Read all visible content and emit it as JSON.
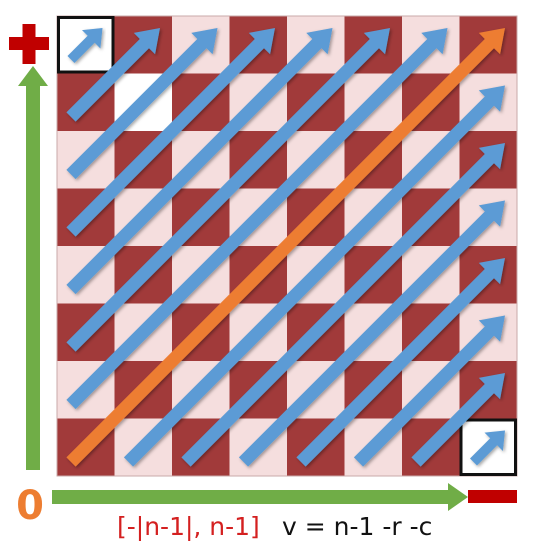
{
  "board": {
    "size": 8,
    "dark_color": "#a13a3a",
    "light_color": "#f5dede",
    "highlight_cell_color": "#ffffff",
    "highlighted_cells": [
      [
        0,
        0
      ],
      [
        1,
        1
      ],
      [
        7,
        7
      ]
    ],
    "outlined_cells": [
      [
        0,
        0
      ],
      [
        7,
        7
      ]
    ]
  },
  "diagonals": {
    "color": "#5b9bd5",
    "main_color": "#ed7d31",
    "count": 15
  },
  "axes": {
    "color": "#70ad47",
    "plus_sign_color": "#c00000",
    "minus_sign_color": "#c00000",
    "zero_label": "0",
    "zero_color": "#ed7d31"
  },
  "captions": {
    "range": "[-|n-1|, n-1]",
    "range_color": "#d42020",
    "formula": "v = n-1 -r -c"
  }
}
